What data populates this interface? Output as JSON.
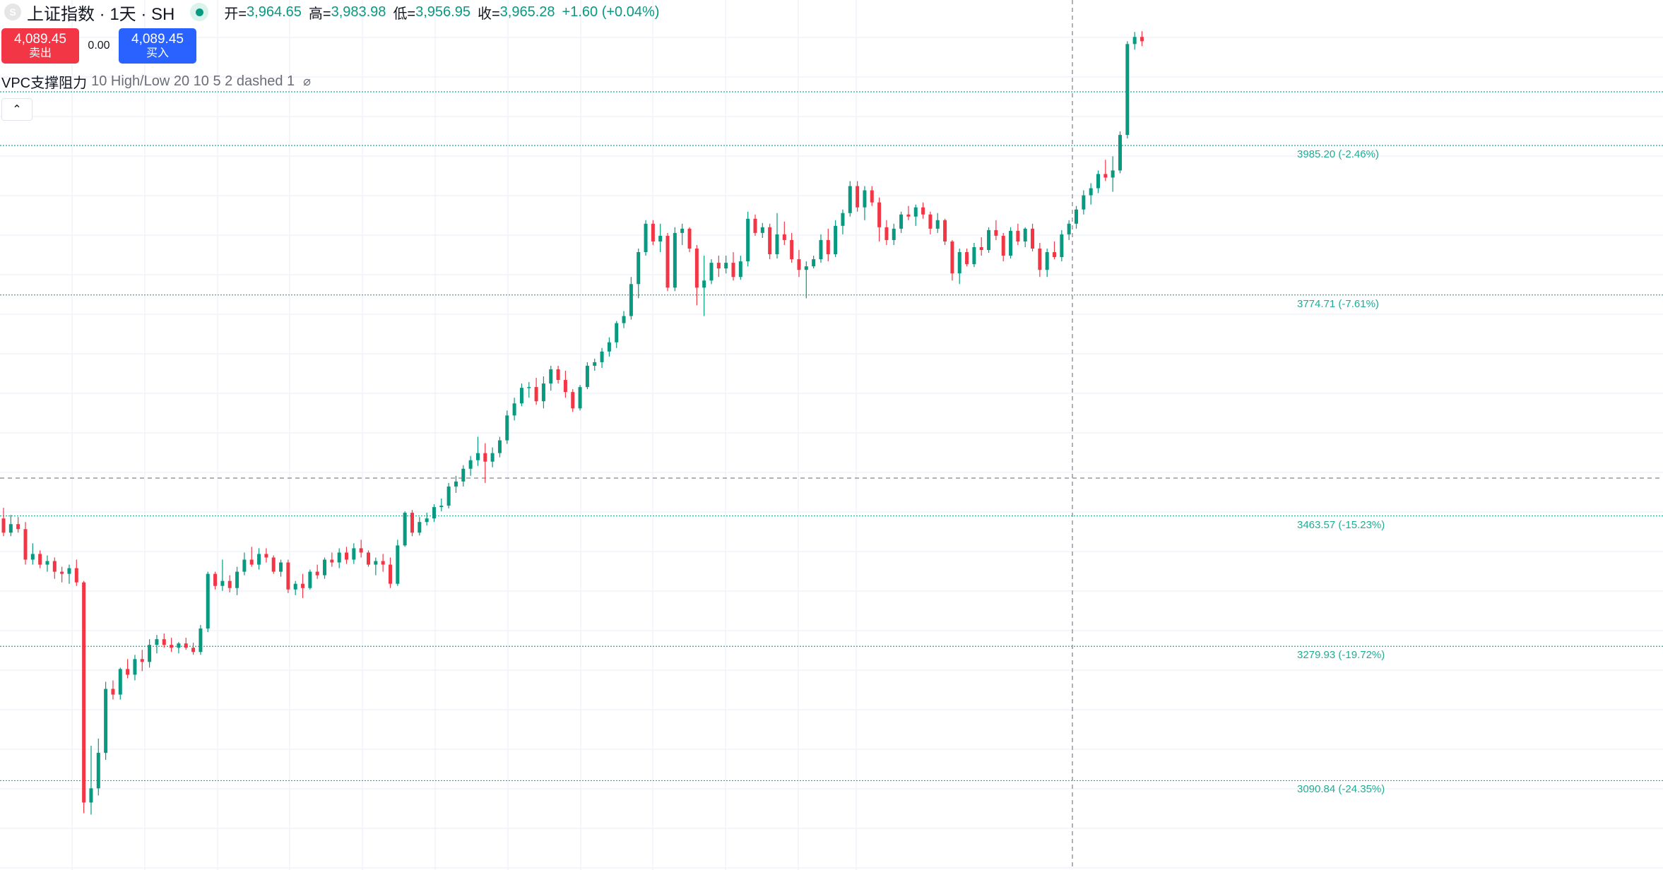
{
  "header": {
    "symbol_logo": "S",
    "symbol_title": "上证指数 · 1天 · SH",
    "ohlc": {
      "open_label": "开=",
      "open_value": "3,964.65",
      "high_label": "高=",
      "high_value": "3,983.98",
      "low_label": "低=",
      "low_value": "3,956.95",
      "close_label": "收=",
      "close_value": "3,965.28",
      "change": "+1.60 (+0.04%)"
    }
  },
  "trade": {
    "sell_price": "4,089.45",
    "sell_label": "卖出",
    "spread": "0.00",
    "buy_price": "4,089.45",
    "buy_label": "买入"
  },
  "indicator": {
    "name": "VPC支撑阻力",
    "params": "10 High/Low 20 10 5 2 dashed 1",
    "visibility_icon": "⌀"
  },
  "collapse_icon": "⌃",
  "levels": [
    {
      "label": "3985.20 (-2.46%)",
      "price": 3985.2
    },
    {
      "label": "3774.71 (-7.61%)",
      "price": 3774.71
    },
    {
      "label": "3463.57 (-15.23%)",
      "price": 3463.57
    },
    {
      "label": "3279.93 (-19.72%)",
      "price": 3279.93
    },
    {
      "label": "3090.84 (-24.35%)",
      "price": 3090.84
    }
  ],
  "colors": {
    "up": "#089981",
    "down": "#f23645",
    "level": "#22ab94",
    "grid": "#f0f3fa"
  },
  "chart_data": {
    "type": "candlestick",
    "y_range": [
      2965,
      4190
    ],
    "candles": [
      [
        3460,
        3475,
        3435,
        3440
      ],
      [
        3440,
        3465,
        3435,
        3452
      ],
      [
        3452,
        3462,
        3440,
        3445
      ],
      [
        3445,
        3455,
        3395,
        3402
      ],
      [
        3402,
        3425,
        3395,
        3410
      ],
      [
        3410,
        3415,
        3390,
        3395
      ],
      [
        3395,
        3408,
        3385,
        3400
      ],
      [
        3400,
        3405,
        3375,
        3385
      ],
      [
        3385,
        3392,
        3370,
        3382
      ],
      [
        3382,
        3395,
        3368,
        3390
      ],
      [
        3390,
        3402,
        3365,
        3370
      ],
      [
        3370,
        3372,
        3045,
        3060
      ],
      [
        3060,
        3140,
        3043,
        3080
      ],
      [
        3080,
        3150,
        3070,
        3130
      ],
      [
        3130,
        3230,
        3120,
        3220
      ],
      [
        3220,
        3232,
        3205,
        3212
      ],
      [
        3212,
        3250,
        3205,
        3248
      ],
      [
        3248,
        3262,
        3235,
        3240
      ],
      [
        3240,
        3268,
        3232,
        3262
      ],
      [
        3262,
        3275,
        3245,
        3258
      ],
      [
        3258,
        3290,
        3250,
        3282
      ],
      [
        3282,
        3296,
        3270,
        3290
      ],
      [
        3290,
        3298,
        3278,
        3282
      ],
      [
        3282,
        3292,
        3272,
        3278
      ],
      [
        3278,
        3286,
        3270,
        3284
      ],
      [
        3284,
        3292,
        3275,
        3278
      ],
      [
        3278,
        3285,
        3268,
        3272
      ],
      [
        3272,
        3310,
        3268,
        3305
      ],
      [
        3305,
        3385,
        3300,
        3382
      ],
      [
        3382,
        3385,
        3360,
        3365
      ],
      [
        3365,
        3402,
        3358,
        3372
      ],
      [
        3372,
        3380,
        3356,
        3362
      ],
      [
        3362,
        3392,
        3352,
        3385
      ],
      [
        3385,
        3412,
        3380,
        3402
      ],
      [
        3402,
        3420,
        3392,
        3395
      ],
      [
        3395,
        3418,
        3388,
        3410
      ],
      [
        3410,
        3418,
        3398,
        3405
      ],
      [
        3405,
        3408,
        3382,
        3385
      ],
      [
        3385,
        3402,
        3378,
        3398
      ],
      [
        3398,
        3402,
        3355,
        3360
      ],
      [
        3360,
        3372,
        3352,
        3368
      ],
      [
        3368,
        3382,
        3348,
        3362
      ],
      [
        3362,
        3388,
        3360,
        3385
      ],
      [
        3385,
        3395,
        3375,
        3380
      ],
      [
        3380,
        3405,
        3375,
        3402
      ],
      [
        3402,
        3412,
        3392,
        3398
      ],
      [
        3398,
        3418,
        3390,
        3412
      ],
      [
        3412,
        3420,
        3396,
        3402
      ],
      [
        3402,
        3425,
        3396,
        3418
      ],
      [
        3418,
        3430,
        3405,
        3412
      ],
      [
        3412,
        3415,
        3392,
        3395
      ],
      [
        3395,
        3405,
        3380,
        3400
      ],
      [
        3400,
        3410,
        3385,
        3395
      ],
      [
        3395,
        3405,
        3362,
        3368
      ],
      [
        3368,
        3430,
        3365,
        3422
      ],
      [
        3422,
        3470,
        3420,
        3468
      ],
      [
        3468,
        3472,
        3435,
        3440
      ],
      [
        3440,
        3462,
        3436,
        3455
      ],
      [
        3455,
        3468,
        3450,
        3460
      ],
      [
        3460,
        3480,
        3455,
        3476
      ],
      [
        3476,
        3488,
        3470,
        3478
      ],
      [
        3478,
        3510,
        3474,
        3505
      ],
      [
        3505,
        3520,
        3496,
        3512
      ],
      [
        3512,
        3535,
        3505,
        3530
      ],
      [
        3530,
        3548,
        3520,
        3542
      ],
      [
        3542,
        3575,
        3534,
        3552
      ],
      [
        3552,
        3566,
        3510,
        3540
      ],
      [
        3540,
        3560,
        3532,
        3552
      ],
      [
        3552,
        3575,
        3546,
        3570
      ],
      [
        3570,
        3612,
        3565,
        3605
      ],
      [
        3605,
        3630,
        3598,
        3622
      ],
      [
        3622,
        3650,
        3618,
        3644
      ],
      [
        3644,
        3652,
        3630,
        3645
      ],
      [
        3645,
        3658,
        3620,
        3625
      ],
      [
        3625,
        3660,
        3615,
        3650
      ],
      [
        3650,
        3675,
        3640,
        3670
      ],
      [
        3670,
        3675,
        3650,
        3655
      ],
      [
        3655,
        3668,
        3630,
        3638
      ],
      [
        3638,
        3642,
        3610,
        3615
      ],
      [
        3615,
        3648,
        3612,
        3645
      ],
      [
        3645,
        3680,
        3642,
        3675
      ],
      [
        3675,
        3685,
        3668,
        3680
      ],
      [
        3680,
        3700,
        3672,
        3695
      ],
      [
        3695,
        3715,
        3688,
        3708
      ],
      [
        3708,
        3738,
        3700,
        3735
      ],
      [
        3735,
        3752,
        3728,
        3745
      ],
      [
        3745,
        3800,
        3740,
        3790
      ],
      [
        3790,
        3840,
        3770,
        3835
      ],
      [
        3835,
        3880,
        3830,
        3875
      ],
      [
        3875,
        3880,
        3845,
        3850
      ],
      [
        3850,
        3875,
        3835,
        3858
      ],
      [
        3858,
        3862,
        3780,
        3785
      ],
      [
        3785,
        3870,
        3780,
        3862
      ],
      [
        3862,
        3875,
        3845,
        3868
      ],
      [
        3868,
        3870,
        3835,
        3840
      ],
      [
        3840,
        3845,
        3760,
        3785
      ],
      [
        3785,
        3830,
        3745,
        3795
      ],
      [
        3795,
        3825,
        3790,
        3820
      ],
      [
        3820,
        3830,
        3800,
        3812
      ],
      [
        3812,
        3830,
        3805,
        3820
      ],
      [
        3820,
        3835,
        3795,
        3800
      ],
      [
        3800,
        3830,
        3796,
        3822
      ],
      [
        3822,
        3892,
        3815,
        3882
      ],
      [
        3882,
        3888,
        3858,
        3862
      ],
      [
        3862,
        3876,
        3855,
        3870
      ],
      [
        3870,
        3875,
        3825,
        3832
      ],
      [
        3832,
        3890,
        3826,
        3860
      ],
      [
        3860,
        3878,
        3845,
        3852
      ],
      [
        3852,
        3862,
        3820,
        3825
      ],
      [
        3825,
        3838,
        3800,
        3810
      ],
      [
        3810,
        3822,
        3770,
        3815
      ],
      [
        3815,
        3830,
        3812,
        3825
      ],
      [
        3825,
        3860,
        3820,
        3852
      ],
      [
        3852,
        3868,
        3822,
        3832
      ],
      [
        3832,
        3880,
        3828,
        3872
      ],
      [
        3872,
        3895,
        3860,
        3890
      ],
      [
        3890,
        3935,
        3885,
        3928
      ],
      [
        3928,
        3935,
        3892,
        3898
      ],
      [
        3898,
        3928,
        3880,
        3922
      ],
      [
        3922,
        3928,
        3900,
        3905
      ],
      [
        3905,
        3912,
        3850,
        3870
      ],
      [
        3870,
        3880,
        3845,
        3852
      ],
      [
        3852,
        3875,
        3845,
        3868
      ],
      [
        3868,
        3892,
        3862,
        3888
      ],
      [
        3888,
        3900,
        3880,
        3885
      ],
      [
        3885,
        3902,
        3872,
        3898
      ],
      [
        3898,
        3905,
        3882,
        3888
      ],
      [
        3888,
        3892,
        3860,
        3868
      ],
      [
        3868,
        3890,
        3862,
        3880
      ],
      [
        3880,
        3882,
        3845,
        3850
      ],
      [
        3850,
        3852,
        3795,
        3805
      ],
      [
        3805,
        3840,
        3790,
        3835
      ],
      [
        3835,
        3840,
        3815,
        3818
      ],
      [
        3818,
        3848,
        3814,
        3842
      ],
      [
        3842,
        3856,
        3830,
        3838
      ],
      [
        3838,
        3870,
        3834,
        3866
      ],
      [
        3866,
        3880,
        3852,
        3858
      ],
      [
        3858,
        3862,
        3822,
        3830
      ],
      [
        3830,
        3870,
        3826,
        3865
      ],
      [
        3865,
        3875,
        3845,
        3850
      ],
      [
        3850,
        3870,
        3842,
        3868
      ],
      [
        3868,
        3875,
        3836,
        3840
      ],
      [
        3840,
        3848,
        3800,
        3810
      ],
      [
        3810,
        3840,
        3800,
        3835
      ],
      [
        3835,
        3850,
        3825,
        3828
      ],
      [
        3828,
        3866,
        3822,
        3860
      ],
      [
        3860,
        3880,
        3852,
        3875
      ],
      [
        3875,
        3900,
        3868,
        3895
      ],
      [
        3895,
        3922,
        3888,
        3915
      ],
      [
        3915,
        3932,
        3902,
        3925
      ],
      [
        3925,
        3950,
        3918,
        3945
      ],
      [
        3945,
        3965,
        3935,
        3940
      ],
      [
        3940,
        3970,
        3920,
        3950
      ],
      [
        3950,
        4005,
        3946,
        4000
      ],
      [
        4000,
        4132,
        3995,
        4128
      ],
      [
        4128,
        4145,
        4120,
        4138
      ],
      [
        4138,
        4146,
        4125,
        4132
      ]
    ]
  }
}
